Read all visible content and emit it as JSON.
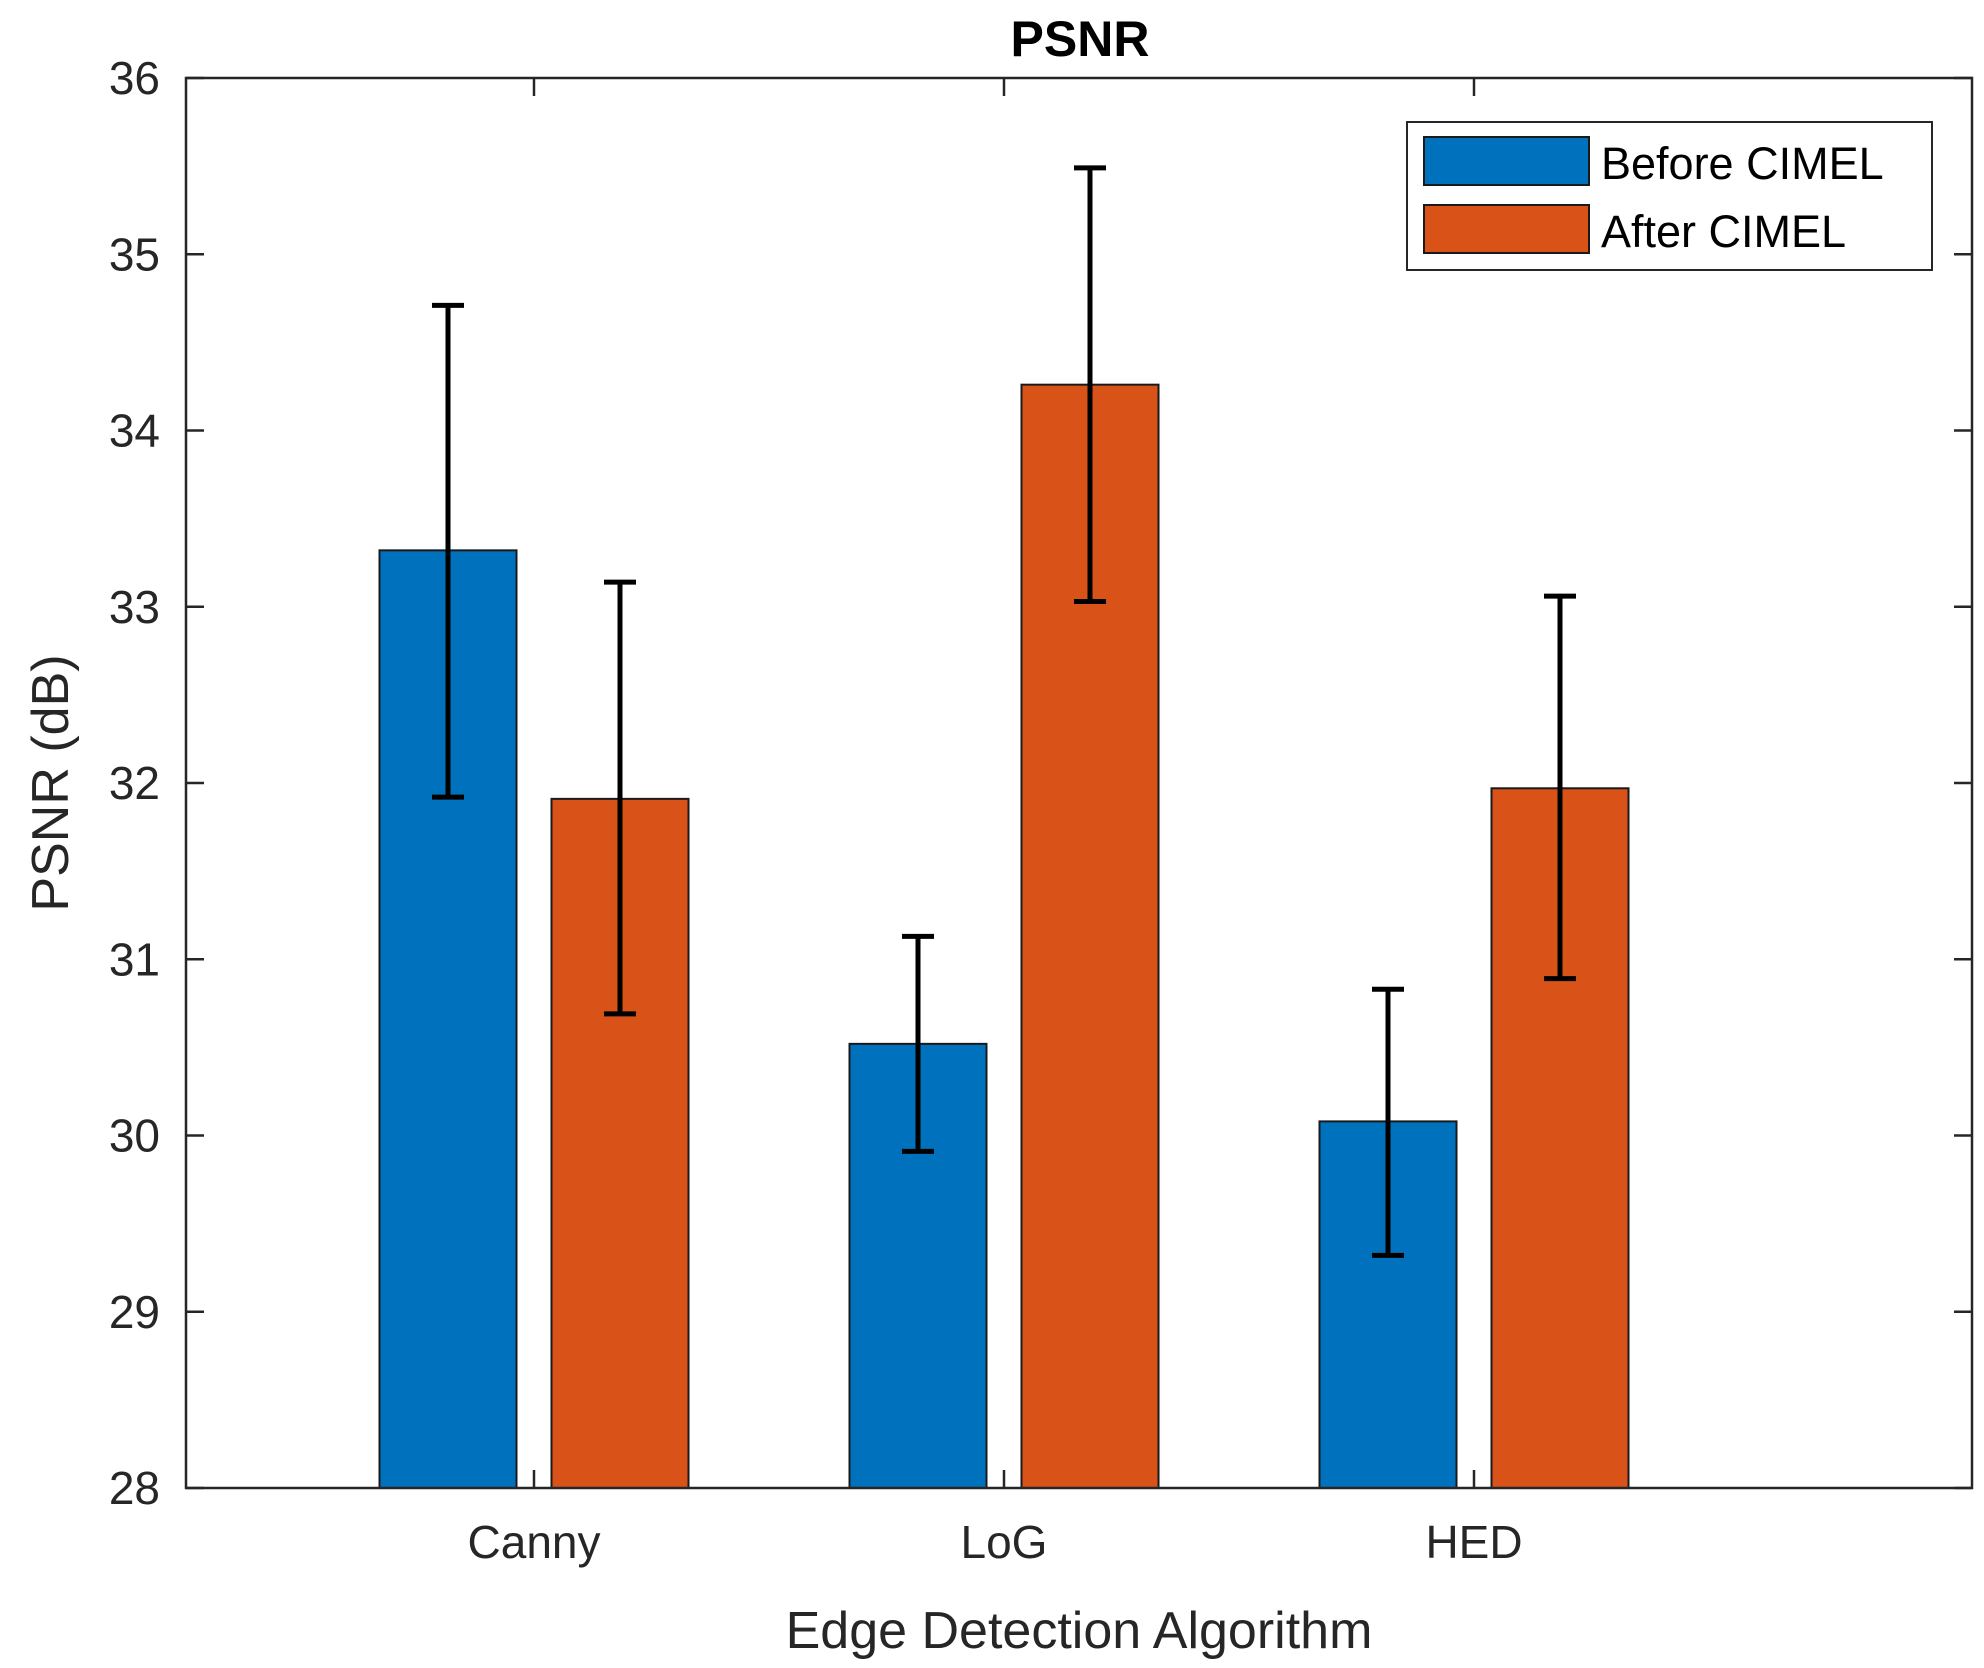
{
  "chart_data": {
    "type": "bar",
    "title": "PSNR",
    "xlabel": "Edge Detection Algorithm",
    "ylabel": "PSNR (dB)",
    "categories": [
      "Canny",
      "LoG",
      "HED"
    ],
    "ylim": [
      28,
      36
    ],
    "yticks": [
      "28",
      "29",
      "30",
      "31",
      "32",
      "33",
      "34",
      "35",
      "36"
    ],
    "series": [
      {
        "name": "Before CIMEL",
        "color": "#0072BD",
        "values": [
          33.32,
          30.52,
          30.08
        ],
        "error_low": [
          31.92,
          29.91,
          29.32
        ],
        "error_high": [
          34.71,
          31.13,
          30.83
        ]
      },
      {
        "name": "After CIMEL",
        "color": "#D95319",
        "values": [
          31.91,
          34.26,
          31.97
        ],
        "error_low": [
          30.69,
          33.03,
          30.89
        ],
        "error_high": [
          33.14,
          35.49,
          33.06
        ]
      }
    ],
    "legend_position": "top-right",
    "grid": false
  }
}
